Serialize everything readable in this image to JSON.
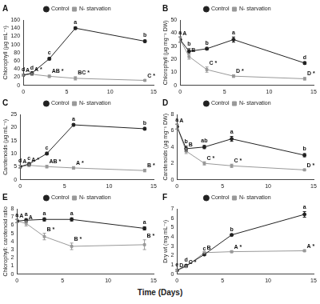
{
  "x_axis_label": "Time (Days)",
  "chart_data": [
    {
      "type": "line",
      "title": "A",
      "y_label": "Chlorophyll (µg mL⁻¹)",
      "x": [
        0,
        1,
        3,
        6,
        14
      ],
      "xlim": [
        0,
        15
      ],
      "xticks": [
        0,
        5,
        10,
        15
      ],
      "ylim": [
        0,
        160
      ],
      "yticks": [
        0,
        20,
        40,
        60,
        80,
        100,
        120,
        140,
        160
      ],
      "legend": "top",
      "series": [
        {
          "name": "Control",
          "color": "#222222",
          "marker": "circle",
          "line_style": "solid",
          "values": [
            25,
            30,
            65,
            140,
            108
          ],
          "errors": [
            2,
            2,
            3,
            3,
            3
          ],
          "labels": [
            "d",
            "d",
            "c",
            "a",
            "b"
          ]
        },
        {
          "name": "N- starvation",
          "color": "#999999",
          "marker": "rect",
          "line_style": "solid",
          "values": [
            25,
            27,
            22,
            17,
            12
          ],
          "errors": [
            2,
            3,
            3,
            4,
            2
          ],
          "labels": [
            "A",
            "A *",
            "AB *",
            "BC *",
            "C *"
          ]
        }
      ]
    },
    {
      "type": "line",
      "title": "B",
      "y_label": "Chlorophyll (µg mg⁻¹ DW)",
      "x": [
        0,
        1,
        3,
        6,
        14
      ],
      "xlim": [
        0,
        15
      ],
      "xticks": [
        0,
        5,
        10,
        15
      ],
      "ylim": [
        0,
        50
      ],
      "yticks": [
        0,
        10,
        20,
        30,
        40,
        50
      ],
      "legend": "top",
      "series": [
        {
          "name": "Control",
          "color": "#222222",
          "marker": "circle",
          "line_style": "solid",
          "values": [
            35,
            26,
            28,
            35,
            17
          ],
          "errors": [
            2,
            2,
            1,
            2,
            1
          ],
          "labels": [
            "a",
            "b",
            "b",
            "a",
            "d"
          ]
        },
        {
          "name": "N- starvation",
          "color": "#999999",
          "marker": "rect",
          "line_style": "solid",
          "values": [
            35,
            22,
            12,
            7,
            5
          ],
          "errors": [
            2,
            2,
            2,
            1,
            1
          ],
          "labels": [
            "A",
            "B",
            "C *",
            "D *",
            "D *"
          ]
        }
      ]
    },
    {
      "type": "line",
      "title": "C",
      "y_label": "Carotenoids (µg mL⁻¹)",
      "x": [
        0,
        1,
        3,
        6,
        14
      ],
      "xlim": [
        0,
        15
      ],
      "xticks": [
        0,
        5,
        10,
        15
      ],
      "ylim": [
        0,
        25
      ],
      "yticks": [
        0,
        5,
        10,
        15,
        20,
        25
      ],
      "legend": "top",
      "series": [
        {
          "name": "Control",
          "color": "#222222",
          "marker": "circle",
          "line_style": "solid",
          "values": [
            5,
            6,
            10,
            21,
            19.5
          ],
          "errors": [
            0.5,
            0.5,
            0.5,
            0.5,
            0.5
          ],
          "labels": [
            "d",
            "c",
            "c",
            "a",
            "b"
          ]
        },
        {
          "name": "N- starvation",
          "color": "#999999",
          "marker": "rect",
          "line_style": "solid",
          "values": [
            5,
            5.5,
            5,
            4.5,
            3.5
          ],
          "errors": [
            0.5,
            0.5,
            0.5,
            0.5,
            0.5
          ],
          "labels": [
            "A",
            "A *",
            "AB *",
            "A *",
            "B *"
          ]
        }
      ]
    },
    {
      "type": "line",
      "title": "D",
      "y_label": "Carotenoids (µg mg⁻¹ DW)",
      "x": [
        0,
        1,
        3,
        6,
        14
      ],
      "xlim": [
        0,
        15
      ],
      "xticks": [
        0,
        5,
        10,
        15
      ],
      "ylim": [
        0,
        8
      ],
      "yticks": [
        0,
        2,
        4,
        6,
        8
      ],
      "legend": "top",
      "series": [
        {
          "name": "Control",
          "color": "#222222",
          "marker": "circle",
          "line_style": "solid",
          "values": [
            6.5,
            3.8,
            4,
            5,
            3
          ],
          "errors": [
            0.3,
            0.3,
            0.2,
            0.3,
            0.2
          ],
          "labels": [
            "a",
            "b",
            "ab",
            "a",
            "b"
          ]
        },
        {
          "name": "N- starvation",
          "color": "#999999",
          "marker": "rect",
          "line_style": "solid",
          "values": [
            6.5,
            3.5,
            2,
            1.7,
            1.2
          ],
          "errors": [
            0.3,
            0.3,
            0.2,
            0.2,
            0.1
          ],
          "labels": [
            "A",
            "B",
            "C *",
            "C *",
            "D *"
          ]
        }
      ]
    },
    {
      "type": "line",
      "title": "E",
      "y_label": "Chlorophyll: carotenoid ratio",
      "x": [
        0,
        1,
        3,
        6,
        14
      ],
      "xlim": [
        0,
        15
      ],
      "xticks": [
        0,
        5,
        10,
        15
      ],
      "ylim": [
        0,
        8
      ],
      "yticks": [
        0,
        1,
        2,
        3,
        4,
        5,
        6,
        7,
        8
      ],
      "legend": "top",
      "series": [
        {
          "name": "Control",
          "color": "#222222",
          "marker": "circle",
          "line_style": "solid",
          "values": [
            6.5,
            6.6,
            6.7,
            6.7,
            5.6
          ],
          "errors": [
            0.2,
            0.2,
            0.2,
            0.2,
            0.2
          ],
          "labels": [
            "a",
            "a",
            "a",
            "a",
            "a"
          ]
        },
        {
          "name": "N- starvation",
          "color": "#999999",
          "marker": "rect",
          "line_style": "solid",
          "values": [
            6.5,
            6.2,
            4.6,
            3.4,
            3.6
          ],
          "errors": [
            0.2,
            0.3,
            0.4,
            0.4,
            0.6
          ],
          "labels": [
            "A",
            "A",
            "B *",
            "B *",
            "B *"
          ]
        }
      ]
    },
    {
      "type": "line",
      "title": "F",
      "y_label": "Dry wt (mg mL⁻¹)",
      "x": [
        0,
        1,
        3,
        6,
        14
      ],
      "xlim": [
        0,
        15
      ],
      "xticks": [
        0,
        5,
        10,
        15
      ],
      "ylim": [
        0,
        7
      ],
      "yticks": [
        0,
        1,
        2,
        3,
        4,
        5,
        6,
        7
      ],
      "legend": "top",
      "series": [
        {
          "name": "Control",
          "color": "#222222",
          "marker": "circle",
          "line_style": "solid",
          "values": [
            0.4,
            0.9,
            2.1,
            4.2,
            6.4
          ],
          "errors": [
            0.1,
            0.1,
            0.1,
            0.1,
            0.3
          ],
          "labels": [
            "e",
            "d",
            "c",
            "b",
            "a"
          ]
        },
        {
          "name": "N- starvation",
          "color": "#999999",
          "marker": "rect",
          "line_style": "solid",
          "values": [
            0.4,
            0.8,
            2.3,
            2.4,
            2.5
          ],
          "errors": [
            0.1,
            0.1,
            0.1,
            0.1,
            0.1
          ],
          "labels": [
            "D",
            "C *",
            "B",
            "A *",
            "A *"
          ]
        }
      ]
    }
  ]
}
